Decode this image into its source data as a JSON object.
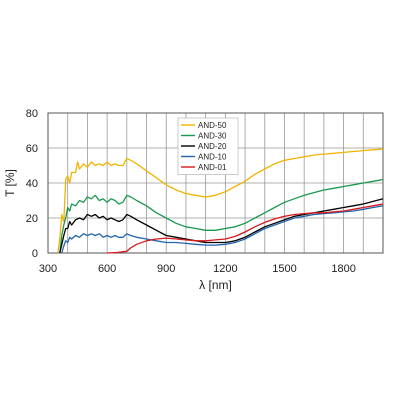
{
  "chart_data": {
    "type": "line",
    "title": "",
    "xlabel": "λ [nm]",
    "ylabel": "T [%]",
    "xlim": [
      300,
      2000
    ],
    "ylim": [
      0,
      80
    ],
    "x_ticks": [
      300,
      600,
      900,
      1200,
      1500,
      1800
    ],
    "y_ticks": [
      0,
      20,
      40,
      60,
      80
    ],
    "grid": true,
    "legend_position": "top-center",
    "series": [
      {
        "name": "AND-50",
        "color": "#f0b400",
        "points": [
          [
            350,
            0
          ],
          [
            360,
            8
          ],
          [
            370,
            22
          ],
          [
            380,
            18
          ],
          [
            390,
            42
          ],
          [
            400,
            44
          ],
          [
            410,
            40
          ],
          [
            420,
            46
          ],
          [
            440,
            46
          ],
          [
            450,
            52
          ],
          [
            460,
            48
          ],
          [
            480,
            51
          ],
          [
            500,
            49
          ],
          [
            520,
            52
          ],
          [
            540,
            50
          ],
          [
            560,
            51
          ],
          [
            580,
            50
          ],
          [
            600,
            52
          ],
          [
            620,
            50
          ],
          [
            640,
            51
          ],
          [
            660,
            50
          ],
          [
            680,
            50
          ],
          [
            700,
            54
          ],
          [
            720,
            53
          ],
          [
            750,
            51
          ],
          [
            800,
            47
          ],
          [
            850,
            43
          ],
          [
            900,
            39
          ],
          [
            950,
            36
          ],
          [
            1000,
            34
          ],
          [
            1050,
            33
          ],
          [
            1100,
            32
          ],
          [
            1150,
            33
          ],
          [
            1200,
            35
          ],
          [
            1250,
            38
          ],
          [
            1300,
            41
          ],
          [
            1350,
            45
          ],
          [
            1400,
            48
          ],
          [
            1450,
            51
          ],
          [
            1500,
            53
          ],
          [
            1550,
            54
          ],
          [
            1600,
            55
          ],
          [
            1650,
            56
          ],
          [
            1700,
            56.5
          ],
          [
            1750,
            57
          ],
          [
            1800,
            57.5
          ],
          [
            1850,
            58
          ],
          [
            1900,
            58.5
          ],
          [
            1950,
            59
          ],
          [
            2000,
            59.5
          ]
        ]
      },
      {
        "name": "AND-30",
        "color": "#1a9850",
        "points": [
          [
            360,
            0
          ],
          [
            370,
            10
          ],
          [
            380,
            16
          ],
          [
            390,
            20
          ],
          [
            400,
            26
          ],
          [
            410,
            24
          ],
          [
            420,
            28
          ],
          [
            440,
            27
          ],
          [
            460,
            30
          ],
          [
            480,
            29
          ],
          [
            500,
            32
          ],
          [
            520,
            31
          ],
          [
            540,
            33
          ],
          [
            560,
            30
          ],
          [
            580,
            31
          ],
          [
            600,
            29
          ],
          [
            620,
            31
          ],
          [
            640,
            30
          ],
          [
            660,
            28
          ],
          [
            680,
            29
          ],
          [
            700,
            33
          ],
          [
            720,
            32
          ],
          [
            750,
            30
          ],
          [
            800,
            27
          ],
          [
            850,
            23
          ],
          [
            900,
            20
          ],
          [
            950,
            17
          ],
          [
            1000,
            15
          ],
          [
            1050,
            14
          ],
          [
            1100,
            13
          ],
          [
            1150,
            13
          ],
          [
            1200,
            14
          ],
          [
            1250,
            15
          ],
          [
            1300,
            17
          ],
          [
            1350,
            20
          ],
          [
            1400,
            23
          ],
          [
            1450,
            26
          ],
          [
            1500,
            29
          ],
          [
            1550,
            31
          ],
          [
            1600,
            33
          ],
          [
            1650,
            34.5
          ],
          [
            1700,
            36
          ],
          [
            1750,
            37
          ],
          [
            1800,
            38
          ],
          [
            1850,
            39
          ],
          [
            1900,
            40
          ],
          [
            1950,
            41
          ],
          [
            2000,
            42
          ]
        ]
      },
      {
        "name": "AND-20",
        "color": "#000000",
        "points": [
          [
            360,
            0
          ],
          [
            370,
            5
          ],
          [
            380,
            10
          ],
          [
            390,
            14
          ],
          [
            400,
            14
          ],
          [
            410,
            18
          ],
          [
            420,
            16
          ],
          [
            440,
            19
          ],
          [
            460,
            20
          ],
          [
            480,
            19
          ],
          [
            500,
            22
          ],
          [
            520,
            21
          ],
          [
            540,
            22
          ],
          [
            560,
            20
          ],
          [
            580,
            21
          ],
          [
            600,
            19
          ],
          [
            620,
            20
          ],
          [
            640,
            19
          ],
          [
            660,
            18
          ],
          [
            680,
            19
          ],
          [
            700,
            22
          ],
          [
            720,
            21
          ],
          [
            750,
            19
          ],
          [
            800,
            16
          ],
          [
            850,
            13
          ],
          [
            900,
            10
          ],
          [
            950,
            9
          ],
          [
            1000,
            8
          ],
          [
            1050,
            7
          ],
          [
            1100,
            6
          ],
          [
            1150,
            6
          ],
          [
            1200,
            6
          ],
          [
            1250,
            7
          ],
          [
            1300,
            9
          ],
          [
            1350,
            12
          ],
          [
            1400,
            15
          ],
          [
            1450,
            17
          ],
          [
            1500,
            19
          ],
          [
            1550,
            21
          ],
          [
            1600,
            22
          ],
          [
            1650,
            23
          ],
          [
            1700,
            24
          ],
          [
            1750,
            25
          ],
          [
            1800,
            26
          ],
          [
            1850,
            27
          ],
          [
            1900,
            28
          ],
          [
            1950,
            29.5
          ],
          [
            2000,
            31
          ]
        ]
      },
      {
        "name": "AND-10",
        "color": "#2166ac",
        "points": [
          [
            370,
            0
          ],
          [
            380,
            4
          ],
          [
            390,
            7
          ],
          [
            400,
            6
          ],
          [
            410,
            9
          ],
          [
            420,
            8
          ],
          [
            440,
            10
          ],
          [
            460,
            9
          ],
          [
            480,
            11
          ],
          [
            500,
            10
          ],
          [
            520,
            11
          ],
          [
            540,
            10
          ],
          [
            560,
            11
          ],
          [
            580,
            9
          ],
          [
            600,
            10
          ],
          [
            620,
            9
          ],
          [
            640,
            10
          ],
          [
            660,
            9
          ],
          [
            680,
            9
          ],
          [
            700,
            11
          ],
          [
            720,
            10
          ],
          [
            750,
            9
          ],
          [
            800,
            8
          ],
          [
            850,
            7
          ],
          [
            900,
            6
          ],
          [
            950,
            6
          ],
          [
            1000,
            5.5
          ],
          [
            1050,
            5
          ],
          [
            1100,
            4.5
          ],
          [
            1150,
            4.5
          ],
          [
            1200,
            5
          ],
          [
            1250,
            6
          ],
          [
            1300,
            8
          ],
          [
            1350,
            11
          ],
          [
            1400,
            14
          ],
          [
            1450,
            16
          ],
          [
            1500,
            18
          ],
          [
            1550,
            20
          ],
          [
            1600,
            21
          ],
          [
            1650,
            22
          ],
          [
            1700,
            22.5
          ],
          [
            1750,
            23
          ],
          [
            1800,
            23.5
          ],
          [
            1850,
            24
          ],
          [
            1900,
            25
          ],
          [
            1950,
            26
          ],
          [
            2000,
            27
          ]
        ]
      },
      {
        "name": "AND-01",
        "color": "#d7191c",
        "points": [
          [
            600,
            0
          ],
          [
            650,
            0.3
          ],
          [
            700,
            1
          ],
          [
            720,
            3
          ],
          [
            750,
            5
          ],
          [
            800,
            7
          ],
          [
            850,
            8
          ],
          [
            900,
            8.5
          ],
          [
            950,
            8
          ],
          [
            1000,
            7.5
          ],
          [
            1050,
            7
          ],
          [
            1100,
            7
          ],
          [
            1150,
            7.5
          ],
          [
            1200,
            8
          ],
          [
            1250,
            9.5
          ],
          [
            1300,
            12
          ],
          [
            1350,
            15
          ],
          [
            1400,
            17.5
          ],
          [
            1450,
            19.5
          ],
          [
            1500,
            21
          ],
          [
            1550,
            22
          ],
          [
            1600,
            22.5
          ],
          [
            1650,
            23
          ],
          [
            1700,
            23
          ],
          [
            1750,
            23.5
          ],
          [
            1800,
            24
          ],
          [
            1850,
            25
          ],
          [
            1900,
            26
          ],
          [
            1950,
            27
          ],
          [
            2000,
            28
          ]
        ]
      }
    ]
  }
}
